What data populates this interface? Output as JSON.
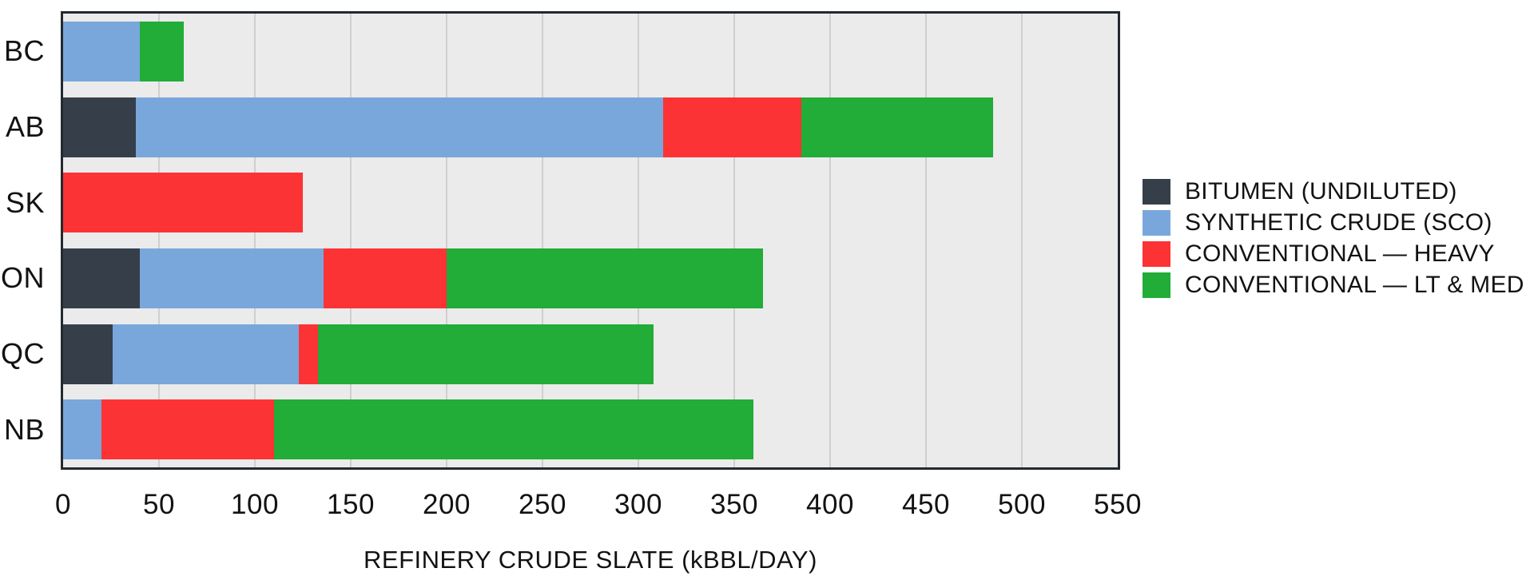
{
  "chart_data": {
    "type": "bar",
    "orientation": "horizontal",
    "stacked": true,
    "title": "",
    "xlabel": "REFINERY CRUDE SLATE (kBBL/DAY)",
    "ylabel": "",
    "categories": [
      "BC",
      "AB",
      "SK",
      "ON",
      "QC",
      "NB"
    ],
    "series": [
      {
        "name": "BITUMEN (UNDILUTED)",
        "color": "#363f49",
        "values": [
          0,
          38,
          0,
          40,
          26,
          0
        ]
      },
      {
        "name": "SYNTHETIC CRUDE (SCO)",
        "color": "#79a7dc",
        "values": [
          40,
          275,
          0,
          96,
          97,
          20
        ]
      },
      {
        "name": "CONVENTIONAL — HEAVY",
        "color": "#fc3335",
        "values": [
          0,
          72,
          125,
          64,
          10,
          90
        ]
      },
      {
        "name": "CONVENTIONAL — LT & MED",
        "color": "#22ac38",
        "values": [
          23,
          100,
          0,
          165,
          175,
          250
        ]
      }
    ],
    "totals": [
      63,
      485,
      125,
      365,
      308,
      360
    ],
    "xlim": [
      0,
      550
    ],
    "xticks": [
      0,
      50,
      100,
      150,
      200,
      250,
      300,
      350,
      400,
      450,
      500,
      550
    ],
    "grid": true,
    "legend_position": "center-right",
    "style": {
      "plot_background": "#ebebeb",
      "grid_color": "#cfcfcf",
      "frame_color": "#24292e",
      "text_color": "#121212",
      "page_background": "#ffffff"
    }
  }
}
